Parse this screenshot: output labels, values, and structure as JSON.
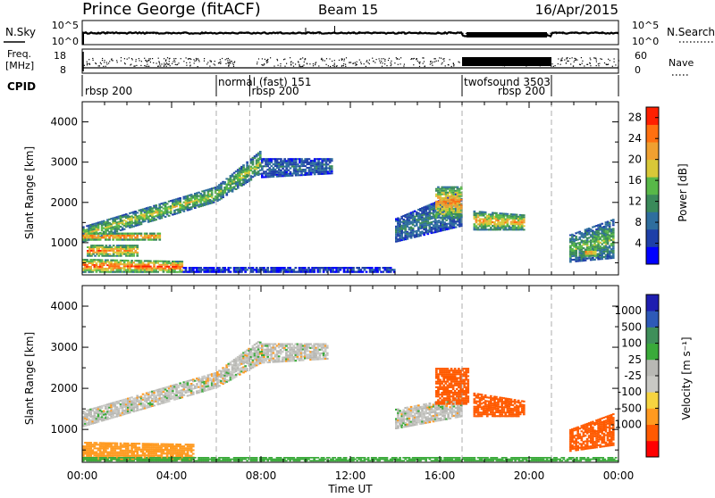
{
  "header": {
    "station": "Prince George (fitACF)",
    "beam": "Beam 15",
    "date": "16/Apr/2015"
  },
  "noise_panel": {
    "left_label": "N.Sky",
    "right_label": "N.Search",
    "left_ticks": [
      "10^5",
      "10^0"
    ],
    "right_ticks": [
      "10^5",
      "10^0"
    ]
  },
  "freq_panel": {
    "left_label_1": "Freq.",
    "left_label_2": "[MHz]",
    "left_ticks": [
      "18",
      "8"
    ],
    "right_label": "Nave",
    "right_ticks": [
      "60",
      "0"
    ]
  },
  "cpid": {
    "label": "CPID",
    "programs": [
      {
        "name": "rbsp 200",
        "start_hour": 0.0,
        "row": 1
      },
      {
        "name": "normal (fast) 151",
        "start_hour": 6.0,
        "row": 0
      },
      {
        "name": "rbsp 200",
        "start_hour": 7.5,
        "row": 1
      },
      {
        "name": "twofsound 3503",
        "start_hour": 17.0,
        "row": 0
      },
      {
        "name": "rbsp 200",
        "start_hour": 17.0,
        "row": 1
      }
    ],
    "boundaries": [
      6.0,
      7.5,
      17.0,
      21.0
    ]
  },
  "colors": {
    "power_scale": [
      "#0000ff",
      "#1e3fa8",
      "#2e6e9e",
      "#3a8a5a",
      "#58b848",
      "#d8c838",
      "#f0a030",
      "#ff7010",
      "#ff2000"
    ],
    "velocity_scale": [
      "#ff0000",
      "#ff5a00",
      "#ff9a20",
      "#f6d440",
      "#c8c8c4",
      "#b8b8b4",
      "#3aaa3a",
      "#3f8f5a",
      "#2e5ab8",
      "#1e1eb0"
    ]
  },
  "chart_data": [
    {
      "type": "heatmap",
      "name": "power",
      "ylabel": "Slant Range [km]",
      "xlim_hours": [
        0,
        24
      ],
      "ylim": [
        200,
        4500
      ],
      "yticks": [
        1000,
        2000,
        3000,
        4000
      ],
      "xtick_labels": [
        "00:00",
        "04:00",
        "08:00",
        "12:00",
        "16:00",
        "20:00",
        "00:00"
      ],
      "colorbar": {
        "label": "Power [dB]",
        "tick_values": [
          4,
          8,
          12,
          16,
          20,
          24,
          28
        ],
        "range": [
          0,
          30
        ]
      },
      "regions": [
        {
          "t0": 0.0,
          "t1": 6.0,
          "r0": 1000,
          "r1": 1400,
          "r0_end": 2000,
          "r1_end": 2400,
          "level": 0.55
        },
        {
          "t0": 6.0,
          "t1": 8.0,
          "r0": 2000,
          "r1": 2400,
          "r0_end": 2700,
          "r1_end": 3300,
          "level": 0.5
        },
        {
          "t0": 0.0,
          "t1": 3.5,
          "r0": 1050,
          "r1": 1250,
          "r0_end": 1050,
          "r1_end": 1250,
          "level": 0.95
        },
        {
          "t0": 0.0,
          "t1": 4.5,
          "r0": 250,
          "r1": 600,
          "r0_end": 250,
          "r1_end": 550,
          "level": 0.9
        },
        {
          "t0": 0.2,
          "t1": 2.5,
          "r0": 650,
          "r1": 950,
          "r0_end": 650,
          "r1_end": 950,
          "level": 0.8
        },
        {
          "t0": 8.0,
          "t1": 11.2,
          "r0": 2600,
          "r1": 3100,
          "r0_end": 2700,
          "r1_end": 3100,
          "level": 0.25
        },
        {
          "t0": 4.5,
          "t1": 14.0,
          "r0": 250,
          "r1": 400,
          "r0_end": 250,
          "r1_end": 400,
          "level": 0.15
        },
        {
          "t0": 14.0,
          "t1": 17.0,
          "r0": 1000,
          "r1": 1600,
          "r0_end": 1400,
          "r1_end": 2300,
          "level": 0.3
        },
        {
          "t0": 15.8,
          "t1": 17.0,
          "r0": 1600,
          "r1": 2400,
          "r0_end": 1600,
          "r1_end": 2400,
          "level": 0.75
        },
        {
          "t0": 17.5,
          "t1": 19.8,
          "r0": 1300,
          "r1": 1800,
          "r0_end": 1300,
          "r1_end": 1700,
          "level": 0.7
        },
        {
          "t0": 21.8,
          "t1": 23.8,
          "r0": 500,
          "r1": 1200,
          "r0_end": 600,
          "r1_end": 1600,
          "level": 0.45
        },
        {
          "t0": 22.5,
          "t1": 23.0,
          "r0": 650,
          "r1": 850,
          "r0_end": 650,
          "r1_end": 850,
          "level": 0.9
        }
      ]
    },
    {
      "type": "heatmap",
      "name": "velocity",
      "ylabel": "Slant Range [km]",
      "xlabel": "Time UT",
      "xlim_hours": [
        0,
        24
      ],
      "ylim": [
        200,
        4500
      ],
      "yticks": [
        1000,
        2000,
        3000,
        4000
      ],
      "xtick_labels": [
        "00:00",
        "04:00",
        "08:00",
        "12:00",
        "16:00",
        "20:00",
        "00:00"
      ],
      "colorbar": {
        "label": "Velocity [m s⁻¹]",
        "tick_labels": [
          "1000",
          "500",
          "100",
          "25",
          "-25",
          "-100",
          "-500",
          "-1000"
        ],
        "range": [
          -1000,
          1000
        ]
      },
      "regions": [
        {
          "t0": 0.0,
          "t1": 6.0,
          "r0": 1050,
          "r1": 1450,
          "r0_end": 2000,
          "r1_end": 2400,
          "v": 0
        },
        {
          "t0": 6.0,
          "t1": 8.0,
          "r0": 2000,
          "r1": 2400,
          "r0_end": 2600,
          "r1_end": 3200,
          "v": 0
        },
        {
          "t0": 8.0,
          "t1": 11.0,
          "r0": 2600,
          "r1": 3100,
          "r0_end": 2700,
          "r1_end": 3100,
          "v": 0
        },
        {
          "t0": 0.0,
          "t1": 5.0,
          "r0": 250,
          "r1": 700,
          "r0_end": 250,
          "r1_end": 650,
          "v": -60
        },
        {
          "t0": 0.0,
          "t1": 24.0,
          "r0": 220,
          "r1": 330,
          "r0_end": 220,
          "r1_end": 330,
          "v": 60
        },
        {
          "t0": 14.0,
          "t1": 17.0,
          "r0": 1000,
          "r1": 1500,
          "r0_end": 1300,
          "r1_end": 1800,
          "v": 0
        },
        {
          "t0": 15.8,
          "t1": 17.3,
          "r0": 1600,
          "r1": 2500,
          "r0_end": 1600,
          "r1_end": 2500,
          "v": -250
        },
        {
          "t0": 17.5,
          "t1": 19.8,
          "r0": 1300,
          "r1": 1900,
          "r0_end": 1300,
          "r1_end": 1700,
          "v": -250
        },
        {
          "t0": 21.8,
          "t1": 23.8,
          "r0": 450,
          "r1": 1000,
          "r0_end": 600,
          "r1_end": 1400,
          "v": -200
        }
      ]
    }
  ]
}
